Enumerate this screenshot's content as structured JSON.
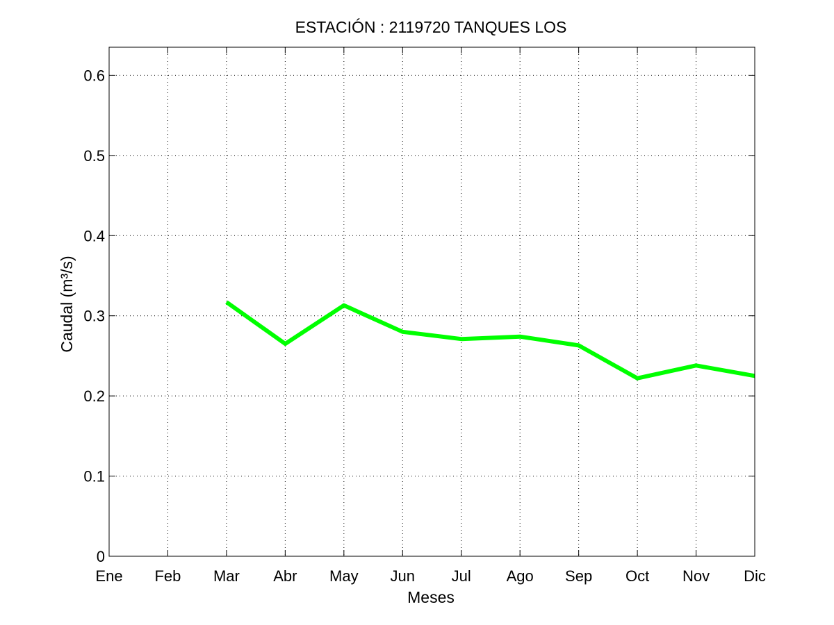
{
  "chart_data": {
    "type": "line",
    "title": "ESTACIÓN :  2119720  TANQUES LOS",
    "xlabel": "Meses",
    "ylabel": "Caudal (m³/s)",
    "categories": [
      "Ene",
      "Feb",
      "Mar",
      "Abr",
      "May",
      "Jun",
      "Jul",
      "Ago",
      "Sep",
      "Oct",
      "Nov",
      "Dic"
    ],
    "yticks": [
      "0",
      "0.1",
      "0.2",
      "0.3",
      "0.4",
      "0.5",
      "0.6"
    ],
    "ylim": [
      0,
      0.635
    ],
    "grid": true,
    "series": [
      {
        "color": "#00ff00",
        "values": [
          null,
          null,
          0.317,
          0.265,
          0.313,
          0.28,
          0.271,
          0.274,
          0.263,
          0.222,
          0.238,
          0.225
        ]
      }
    ]
  }
}
